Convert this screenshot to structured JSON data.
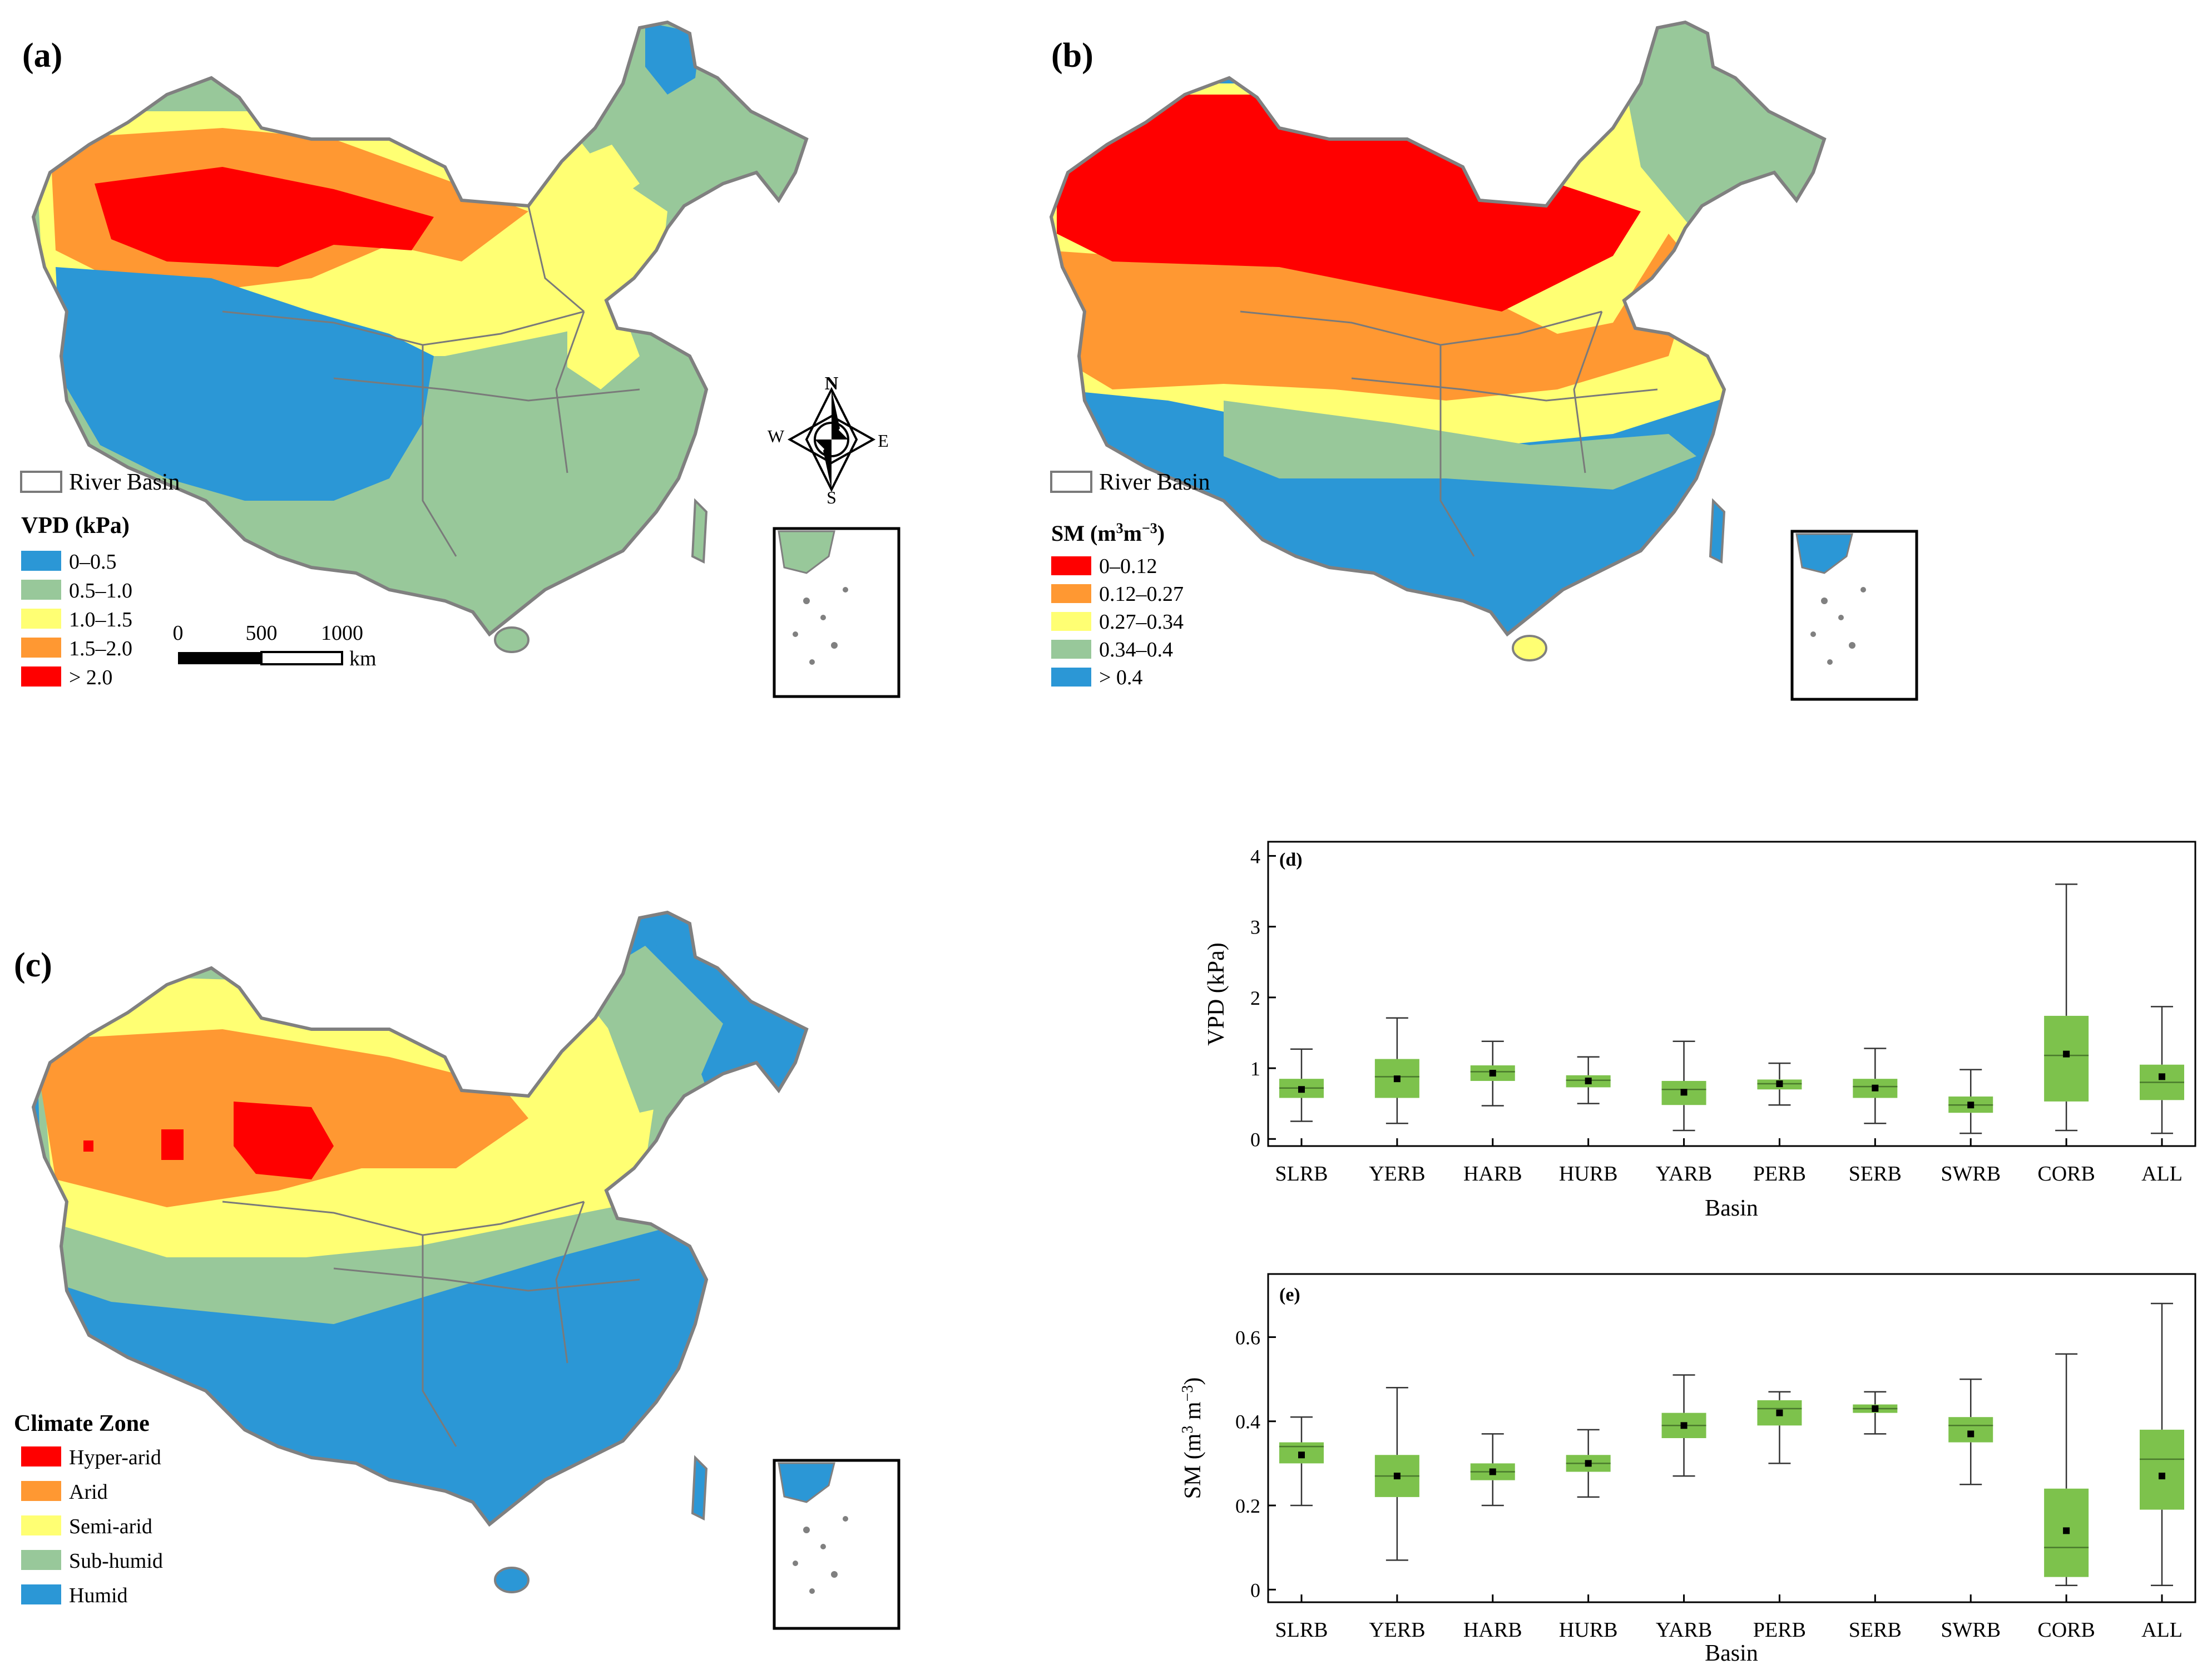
{
  "panels": {
    "a": {
      "tag": "(a)",
      "basin_legend": "River Basin",
      "legend_title": "VPD (kPa)",
      "classes": [
        "0–0.5",
        "0.5–1.0",
        "1.0–1.5",
        "1.5–2.0",
        "> 2.0"
      ],
      "scale_labels": [
        "0",
        "500",
        "1000"
      ],
      "scale_unit": "km",
      "compass": {
        "n": "N",
        "s": "S",
        "e": "E",
        "w": "W"
      }
    },
    "b": {
      "tag": "(b)",
      "basin_legend": "River Basin",
      "legend_title_main": "SM (m",
      "legend_title_sup1": "3",
      "legend_title_mid": "m",
      "legend_title_sup2": "−3",
      "legend_title_end": ")",
      "classes": [
        "0–0.12",
        "0.12–0.27",
        "0.27–0.34",
        "0.34–0.4",
        "> 0.4"
      ]
    },
    "c": {
      "tag": "(c)",
      "legend_title": "Climate Zone",
      "classes": [
        "Hyper-arid",
        "Arid",
        "Semi-arid",
        "Sub-humid",
        "Humid"
      ]
    }
  },
  "colors": {
    "red": "#ff0000",
    "orange": "#ff9832",
    "yellow": "#ffff73",
    "green": "#98c89a",
    "blue": "#2b97d6",
    "box": "#7dc24c",
    "basin_line": "#7a7a7a",
    "land_outline": "#808080"
  },
  "chart_data": [
    {
      "type": "boxplot",
      "tag": "(d)",
      "categories": [
        "SLRB",
        "YERB",
        "HARB",
        "HURB",
        "YARB",
        "PERB",
        "SERB",
        "SWRB",
        "CORB",
        "ALL"
      ],
      "xlabel": "Basin",
      "ylabel": "VPD (kPa)",
      "ylim": [
        -0.1,
        4.2
      ],
      "yticks": [
        "0",
        "1",
        "2",
        "3",
        "4"
      ],
      "ytick_values": [
        0,
        1,
        2,
        3,
        4
      ],
      "stats": [
        {
          "min": 0.25,
          "q1": 0.58,
          "median": 0.72,
          "q3": 0.85,
          "max": 1.27,
          "mean": 0.7
        },
        {
          "min": 0.22,
          "q1": 0.58,
          "median": 0.88,
          "q3": 1.13,
          "max": 1.71,
          "mean": 0.85
        },
        {
          "min": 0.47,
          "q1": 0.82,
          "median": 0.95,
          "q3": 1.04,
          "max": 1.38,
          "mean": 0.93
        },
        {
          "min": 0.5,
          "q1": 0.73,
          "median": 0.83,
          "q3": 0.9,
          "max": 1.16,
          "mean": 0.82
        },
        {
          "min": 0.12,
          "q1": 0.48,
          "median": 0.7,
          "q3": 0.82,
          "max": 1.38,
          "mean": 0.66
        },
        {
          "min": 0.48,
          "q1": 0.7,
          "median": 0.78,
          "q3": 0.84,
          "max": 1.07,
          "mean": 0.78
        },
        {
          "min": 0.22,
          "q1": 0.58,
          "median": 0.74,
          "q3": 0.85,
          "max": 1.28,
          "mean": 0.72
        },
        {
          "min": 0.08,
          "q1": 0.37,
          "median": 0.48,
          "q3": 0.6,
          "max": 0.98,
          "mean": 0.48
        },
        {
          "min": 0.12,
          "q1": 0.53,
          "median": 1.18,
          "q3": 1.74,
          "max": 3.6,
          "mean": 1.2
        },
        {
          "min": 0.08,
          "q1": 0.55,
          "median": 0.8,
          "q3": 1.05,
          "max": 1.87,
          "mean": 0.88
        }
      ]
    },
    {
      "type": "boxplot",
      "tag": "(e)",
      "categories": [
        "SLRB",
        "YERB",
        "HARB",
        "HURB",
        "YARB",
        "PERB",
        "SERB",
        "SWRB",
        "CORB",
        "ALL"
      ],
      "xlabel": "Basin",
      "ylabel_main": "SM (m",
      "ylabel_sup1": "3",
      "ylabel_mid": " m",
      "ylabel_sup2": "−3",
      "ylabel_end": ")",
      "ylim": [
        -0.03,
        0.75
      ],
      "yticks": [
        "0",
        "0.2",
        "0.4",
        "0.6"
      ],
      "ytick_values": [
        0,
        0.2,
        0.4,
        0.6
      ],
      "stats": [
        {
          "min": 0.2,
          "q1": 0.3,
          "median": 0.34,
          "q3": 0.35,
          "max": 0.41,
          "mean": 0.32
        },
        {
          "min": 0.07,
          "q1": 0.22,
          "median": 0.27,
          "q3": 0.32,
          "max": 0.48,
          "mean": 0.27
        },
        {
          "min": 0.2,
          "q1": 0.26,
          "median": 0.28,
          "q3": 0.3,
          "max": 0.37,
          "mean": 0.28
        },
        {
          "min": 0.22,
          "q1": 0.28,
          "median": 0.3,
          "q3": 0.32,
          "max": 0.38,
          "mean": 0.3
        },
        {
          "min": 0.27,
          "q1": 0.36,
          "median": 0.39,
          "q3": 0.42,
          "max": 0.51,
          "mean": 0.39
        },
        {
          "min": 0.3,
          "q1": 0.39,
          "median": 0.43,
          "q3": 0.45,
          "max": 0.47,
          "mean": 0.42
        },
        {
          "min": 0.37,
          "q1": 0.42,
          "median": 0.43,
          "q3": 0.44,
          "max": 0.47,
          "mean": 0.43
        },
        {
          "min": 0.25,
          "q1": 0.35,
          "median": 0.39,
          "q3": 0.41,
          "max": 0.5,
          "mean": 0.37
        },
        {
          "min": 0.01,
          "q1": 0.03,
          "median": 0.1,
          "q3": 0.24,
          "max": 0.56,
          "mean": 0.14
        },
        {
          "min": 0.01,
          "q1": 0.19,
          "median": 0.31,
          "q3": 0.38,
          "max": 0.68,
          "mean": 0.27
        }
      ]
    }
  ]
}
